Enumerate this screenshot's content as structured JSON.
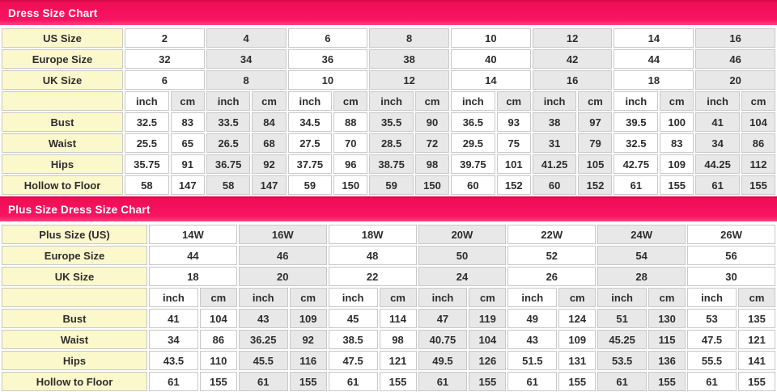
{
  "colors": {
    "header_bar_pink": "#f91463",
    "header_bar_top_line": "#d80a4c",
    "header_text": "#ffffff",
    "label_column_yellow": "#fbf8cc",
    "stripe_gray": "#e8e8e8",
    "stripe_white": "#ffffff",
    "grid_border": "#c8c8c8",
    "cell_text": "#2d2d2d"
  },
  "chart_data": [
    {
      "type": "table",
      "title": "Dress Size Chart",
      "unit_header": [
        "inch",
        "cm"
      ],
      "size_rows": [
        {
          "label": "US Size",
          "values": [
            "2",
            "4",
            "6",
            "8",
            "10",
            "12",
            "14",
            "16"
          ]
        },
        {
          "label": "Europe Size",
          "values": [
            "32",
            "34",
            "36",
            "38",
            "40",
            "42",
            "44",
            "46"
          ]
        },
        {
          "label": "UK Size",
          "values": [
            "6",
            "8",
            "10",
            "12",
            "14",
            "16",
            "18",
            "20"
          ]
        }
      ],
      "measure_rows": [
        {
          "label": "Bust",
          "inch": [
            "32.5",
            "33.5",
            "34.5",
            "35.5",
            "36.5",
            "38",
            "39.5",
            "41"
          ],
          "cm": [
            "83",
            "84",
            "88",
            "90",
            "93",
            "97",
            "100",
            "104"
          ]
        },
        {
          "label": "Waist",
          "inch": [
            "25.5",
            "26.5",
            "27.5",
            "28.5",
            "29.5",
            "31",
            "32.5",
            "34"
          ],
          "cm": [
            "65",
            "68",
            "70",
            "72",
            "75",
            "79",
            "83",
            "86"
          ]
        },
        {
          "label": "Hips",
          "inch": [
            "35.75",
            "36.75",
            "37.75",
            "38.75",
            "39.75",
            "41.25",
            "42.75",
            "44.25"
          ],
          "cm": [
            "91",
            "92",
            "96",
            "98",
            "101",
            "105",
            "109",
            "112"
          ]
        },
        {
          "label": "Hollow to Floor",
          "inch": [
            "58",
            "58",
            "59",
            "59",
            "60",
            "60",
            "61",
            "61"
          ],
          "cm": [
            "147",
            "147",
            "150",
            "150",
            "152",
            "152",
            "155",
            "155"
          ]
        }
      ]
    },
    {
      "type": "table",
      "title": "Plus Size Dress Size Chart",
      "unit_header": [
        "inch",
        "cm"
      ],
      "size_rows": [
        {
          "label": "Plus Size (US)",
          "values": [
            "14W",
            "16W",
            "18W",
            "20W",
            "22W",
            "24W",
            "26W"
          ]
        },
        {
          "label": "Europe Size",
          "values": [
            "44",
            "46",
            "48",
            "50",
            "52",
            "54",
            "56"
          ]
        },
        {
          "label": "UK Size",
          "values": [
            "18",
            "20",
            "22",
            "24",
            "26",
            "28",
            "30"
          ]
        }
      ],
      "measure_rows": [
        {
          "label": "Bust",
          "inch": [
            "41",
            "43",
            "45",
            "47",
            "49",
            "51",
            "53"
          ],
          "cm": [
            "104",
            "109",
            "114",
            "119",
            "124",
            "130",
            "135"
          ]
        },
        {
          "label": "Waist",
          "inch": [
            "34",
            "36.25",
            "38.5",
            "40.75",
            "43",
            "45.25",
            "47.5"
          ],
          "cm": [
            "86",
            "92",
            "98",
            "104",
            "109",
            "115",
            "121"
          ]
        },
        {
          "label": "Hips",
          "inch": [
            "43.5",
            "45.5",
            "47.5",
            "49.5",
            "51.5",
            "53.5",
            "55.5"
          ],
          "cm": [
            "110",
            "116",
            "121",
            "126",
            "131",
            "136",
            "141"
          ]
        },
        {
          "label": "Hollow to Floor",
          "inch": [
            "61",
            "61",
            "61",
            "61",
            "61",
            "61",
            "61"
          ],
          "cm": [
            "155",
            "155",
            "155",
            "155",
            "155",
            "155",
            "155"
          ]
        }
      ]
    }
  ]
}
